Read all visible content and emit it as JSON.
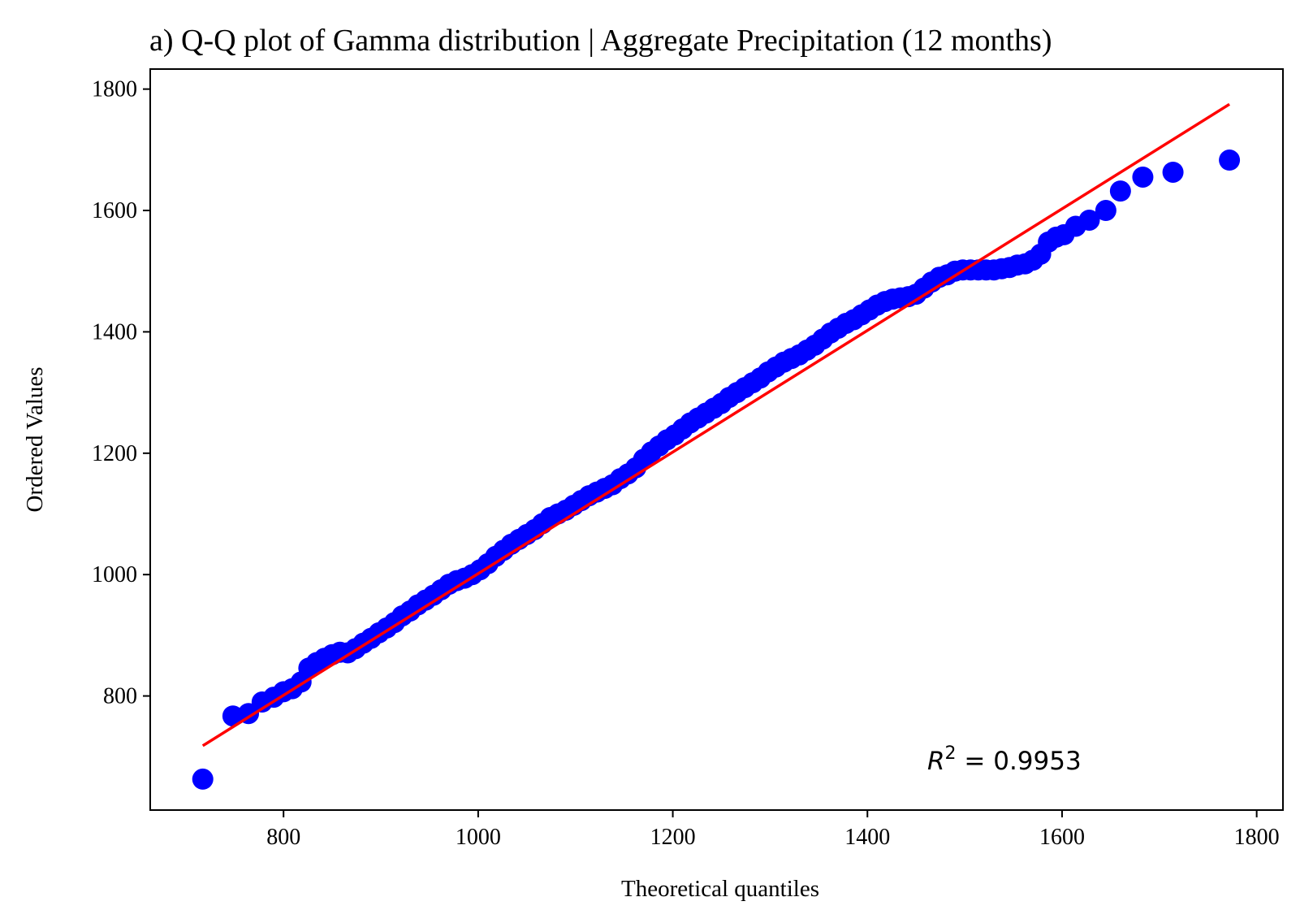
{
  "chart_data": {
    "type": "scatter",
    "title": "a) Q-Q plot of Gamma distribution | Aggregate Precipitation (12 months)",
    "xlabel": "Theoretical quantiles",
    "ylabel": "Ordered Values",
    "xlim": [
      663,
      1827
    ],
    "ylim": [
      612,
      1833
    ],
    "xticks": [
      800,
      1000,
      1200,
      1400,
      1600,
      1800
    ],
    "yticks": [
      800,
      1000,
      1200,
      1400,
      1600,
      1800
    ],
    "xtick_labels": [
      "800",
      "1000",
      "1200",
      "1400",
      "1600",
      "1800"
    ],
    "ytick_labels": [
      "800",
      "1000",
      "1200",
      "1400",
      "1600",
      "1800"
    ],
    "grid": false,
    "annotation": {
      "r_symbol": "R",
      "exponent": "2",
      "equals_text": " = 0.9953"
    },
    "series": [
      {
        "kind": "points",
        "color": "#0000ff",
        "x": [
          717,
          748,
          764,
          778,
          790,
          800,
          809,
          818,
          826,
          834,
          842,
          850,
          858,
          866,
          874,
          882,
          890,
          898,
          906,
          914,
          922,
          930,
          938,
          946,
          954,
          962,
          970,
          978,
          986,
          994,
          1002,
          1010,
          1018,
          1026,
          1034,
          1042,
          1050,
          1058,
          1066,
          1074,
          1082,
          1090,
          1098,
          1106,
          1114,
          1122,
          1130,
          1138,
          1146,
          1154,
          1162,
          1170,
          1178,
          1186,
          1194,
          1202,
          1210,
          1218,
          1226,
          1234,
          1242,
          1250,
          1258,
          1266,
          1274,
          1282,
          1290,
          1298,
          1306,
          1314,
          1322,
          1330,
          1338,
          1346,
          1354,
          1362,
          1370,
          1378,
          1386,
          1394,
          1402,
          1410,
          1418,
          1426,
          1434,
          1442,
          1450,
          1458,
          1466,
          1474,
          1482,
          1490,
          1498,
          1506,
          1514,
          1522,
          1530,
          1538,
          1546,
          1554,
          1562,
          1570,
          1578,
          1586,
          1594,
          1602,
          1614,
          1628,
          1645,
          1660,
          1683,
          1714,
          1772
        ],
        "y": [
          663,
          767,
          771,
          790,
          798,
          807,
          812,
          823,
          846,
          855,
          862,
          868,
          872,
          871,
          878,
          887,
          895,
          904,
          912,
          921,
          932,
          940,
          950,
          958,
          966,
          975,
          984,
          990,
          994,
          1000,
          1008,
          1018,
          1030,
          1040,
          1050,
          1058,
          1066,
          1074,
          1084,
          1094,
          1100,
          1106,
          1114,
          1122,
          1130,
          1136,
          1142,
          1148,
          1158,
          1166,
          1176,
          1190,
          1202,
          1212,
          1222,
          1230,
          1240,
          1250,
          1258,
          1266,
          1274,
          1282,
          1292,
          1300,
          1308,
          1316,
          1324,
          1334,
          1342,
          1350,
          1356,
          1362,
          1370,
          1378,
          1388,
          1398,
          1406,
          1414,
          1420,
          1428,
          1436,
          1444,
          1450,
          1454,
          1456,
          1458,
          1462,
          1472,
          1482,
          1490,
          1494,
          1500,
          1502,
          1502,
          1502,
          1502,
          1502,
          1504,
          1506,
          1510,
          1512,
          1518,
          1528,
          1548,
          1556,
          1560,
          1574,
          1584,
          1600,
          1632,
          1655,
          1663,
          1683
        ]
      },
      {
        "kind": "fit-line",
        "color": "#ff0000",
        "x": [
          717,
          1772
        ],
        "y": [
          718,
          1775
        ]
      }
    ]
  }
}
